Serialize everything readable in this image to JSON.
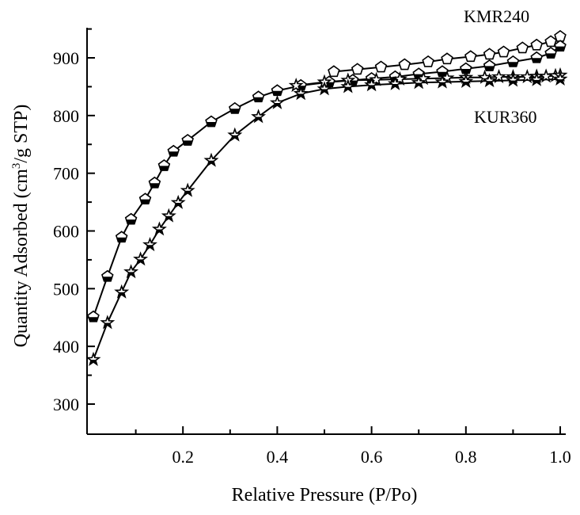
{
  "chart_data": {
    "type": "line",
    "xlabel": "Relative Pressure (P/Po)",
    "ylabel_pre": "Quantity Adsorbed (cm",
    "ylabel_sup": "3",
    "ylabel_post": "/g STP)",
    "xlim": [
      0.0,
      1.02
    ],
    "ylim": [
      250,
      960
    ],
    "x_ticks": [
      0.2,
      0.4,
      0.6,
      0.8,
      1.0
    ],
    "x_tick_labels": [
      "0.2",
      "0.4",
      "0.6",
      "0.8",
      "1.0"
    ],
    "y_ticks": [
      300,
      400,
      500,
      600,
      700,
      800,
      900
    ],
    "y_tick_labels": [
      "300",
      "400",
      "500",
      "600",
      "700",
      "800",
      "900"
    ],
    "grid": false,
    "series_labels": [
      "KMR240",
      "KUR360"
    ],
    "series": [
      {
        "name": "KMR240",
        "role": "desorption",
        "marker": "pentagon-open",
        "x": [
          0.52,
          0.57,
          0.62,
          0.67,
          0.72,
          0.76,
          0.81,
          0.85,
          0.88,
          0.92,
          0.95,
          0.98,
          1.0
        ],
        "y": [
          876,
          880,
          884,
          888,
          893,
          898,
          902,
          906,
          910,
          917,
          922,
          928,
          937
        ]
      },
      {
        "name": "KMR240",
        "role": "adsorption",
        "marker": "pentagon-half",
        "x": [
          0.01,
          0.04,
          0.07,
          0.09,
          0.12,
          0.14,
          0.16,
          0.18,
          0.21,
          0.26,
          0.31,
          0.36,
          0.4,
          0.45,
          0.51,
          0.56,
          0.6,
          0.65,
          0.7,
          0.75,
          0.8,
          0.85,
          0.9,
          0.95,
          0.98,
          1.0
        ],
        "y": [
          451,
          521,
          589,
          620,
          655,
          683,
          713,
          738,
          757,
          789,
          812,
          832,
          843,
          852,
          858,
          861,
          864,
          867,
          872,
          876,
          881,
          886,
          893,
          900,
          908,
          920
        ]
      },
      {
        "name": "KUR360",
        "role": "desorption",
        "marker": "star-open",
        "x": [
          0.44,
          0.5,
          0.55,
          0.61,
          0.66,
          0.71,
          0.76,
          0.8,
          0.84,
          0.87,
          0.9,
          0.93,
          0.95,
          0.97,
          0.99,
          1.0
        ],
        "y": [
          852,
          858,
          861,
          862,
          863,
          864,
          865,
          866,
          866,
          867,
          867,
          867,
          868,
          868,
          869,
          870
        ]
      },
      {
        "name": "KUR360",
        "role": "adsorption",
        "marker": "star-half",
        "x": [
          0.01,
          0.04,
          0.07,
          0.09,
          0.11,
          0.13,
          0.15,
          0.17,
          0.19,
          0.21,
          0.26,
          0.31,
          0.36,
          0.4,
          0.45,
          0.5,
          0.55,
          0.6,
          0.65,
          0.7,
          0.75,
          0.8,
          0.85,
          0.9,
          0.95,
          1.0
        ],
        "y": [
          377,
          441,
          494,
          529,
          551,
          576,
          603,
          626,
          649,
          670,
          722,
          766,
          798,
          822,
          838,
          846,
          850,
          853,
          855,
          857,
          858,
          859,
          860,
          861,
          862,
          863
        ]
      }
    ]
  }
}
